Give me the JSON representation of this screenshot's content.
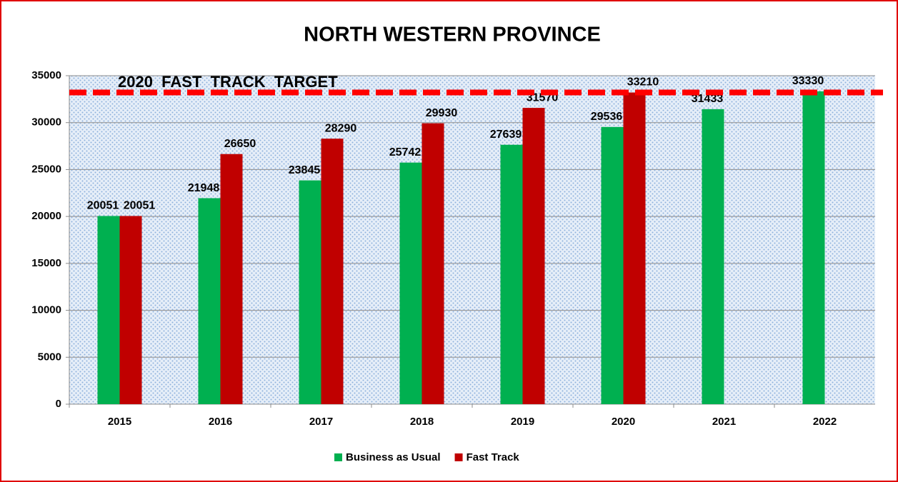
{
  "chart_data": {
    "type": "bar",
    "title": "NORTH WESTERN PROVINCE",
    "categories": [
      "2015",
      "2016",
      "2017",
      "2018",
      "2019",
      "2020",
      "2021",
      "2022"
    ],
    "series": [
      {
        "name": "Business as Usual",
        "color": "#00b050",
        "values": [
          20051,
          21948,
          23845,
          25742,
          27639,
          29536,
          31433,
          33330
        ]
      },
      {
        "name": "Fast Track",
        "color": "#c00000",
        "values": [
          20051,
          26650,
          28290,
          29930,
          31570,
          33210,
          null,
          null
        ]
      }
    ],
    "annotation": "2020  FAST  TRACK  TARGET",
    "ylim": [
      0,
      35000
    ],
    "yticks": [
      0,
      5000,
      10000,
      15000,
      20000,
      25000,
      30000,
      35000
    ],
    "grid": true,
    "legend": "bottom"
  }
}
